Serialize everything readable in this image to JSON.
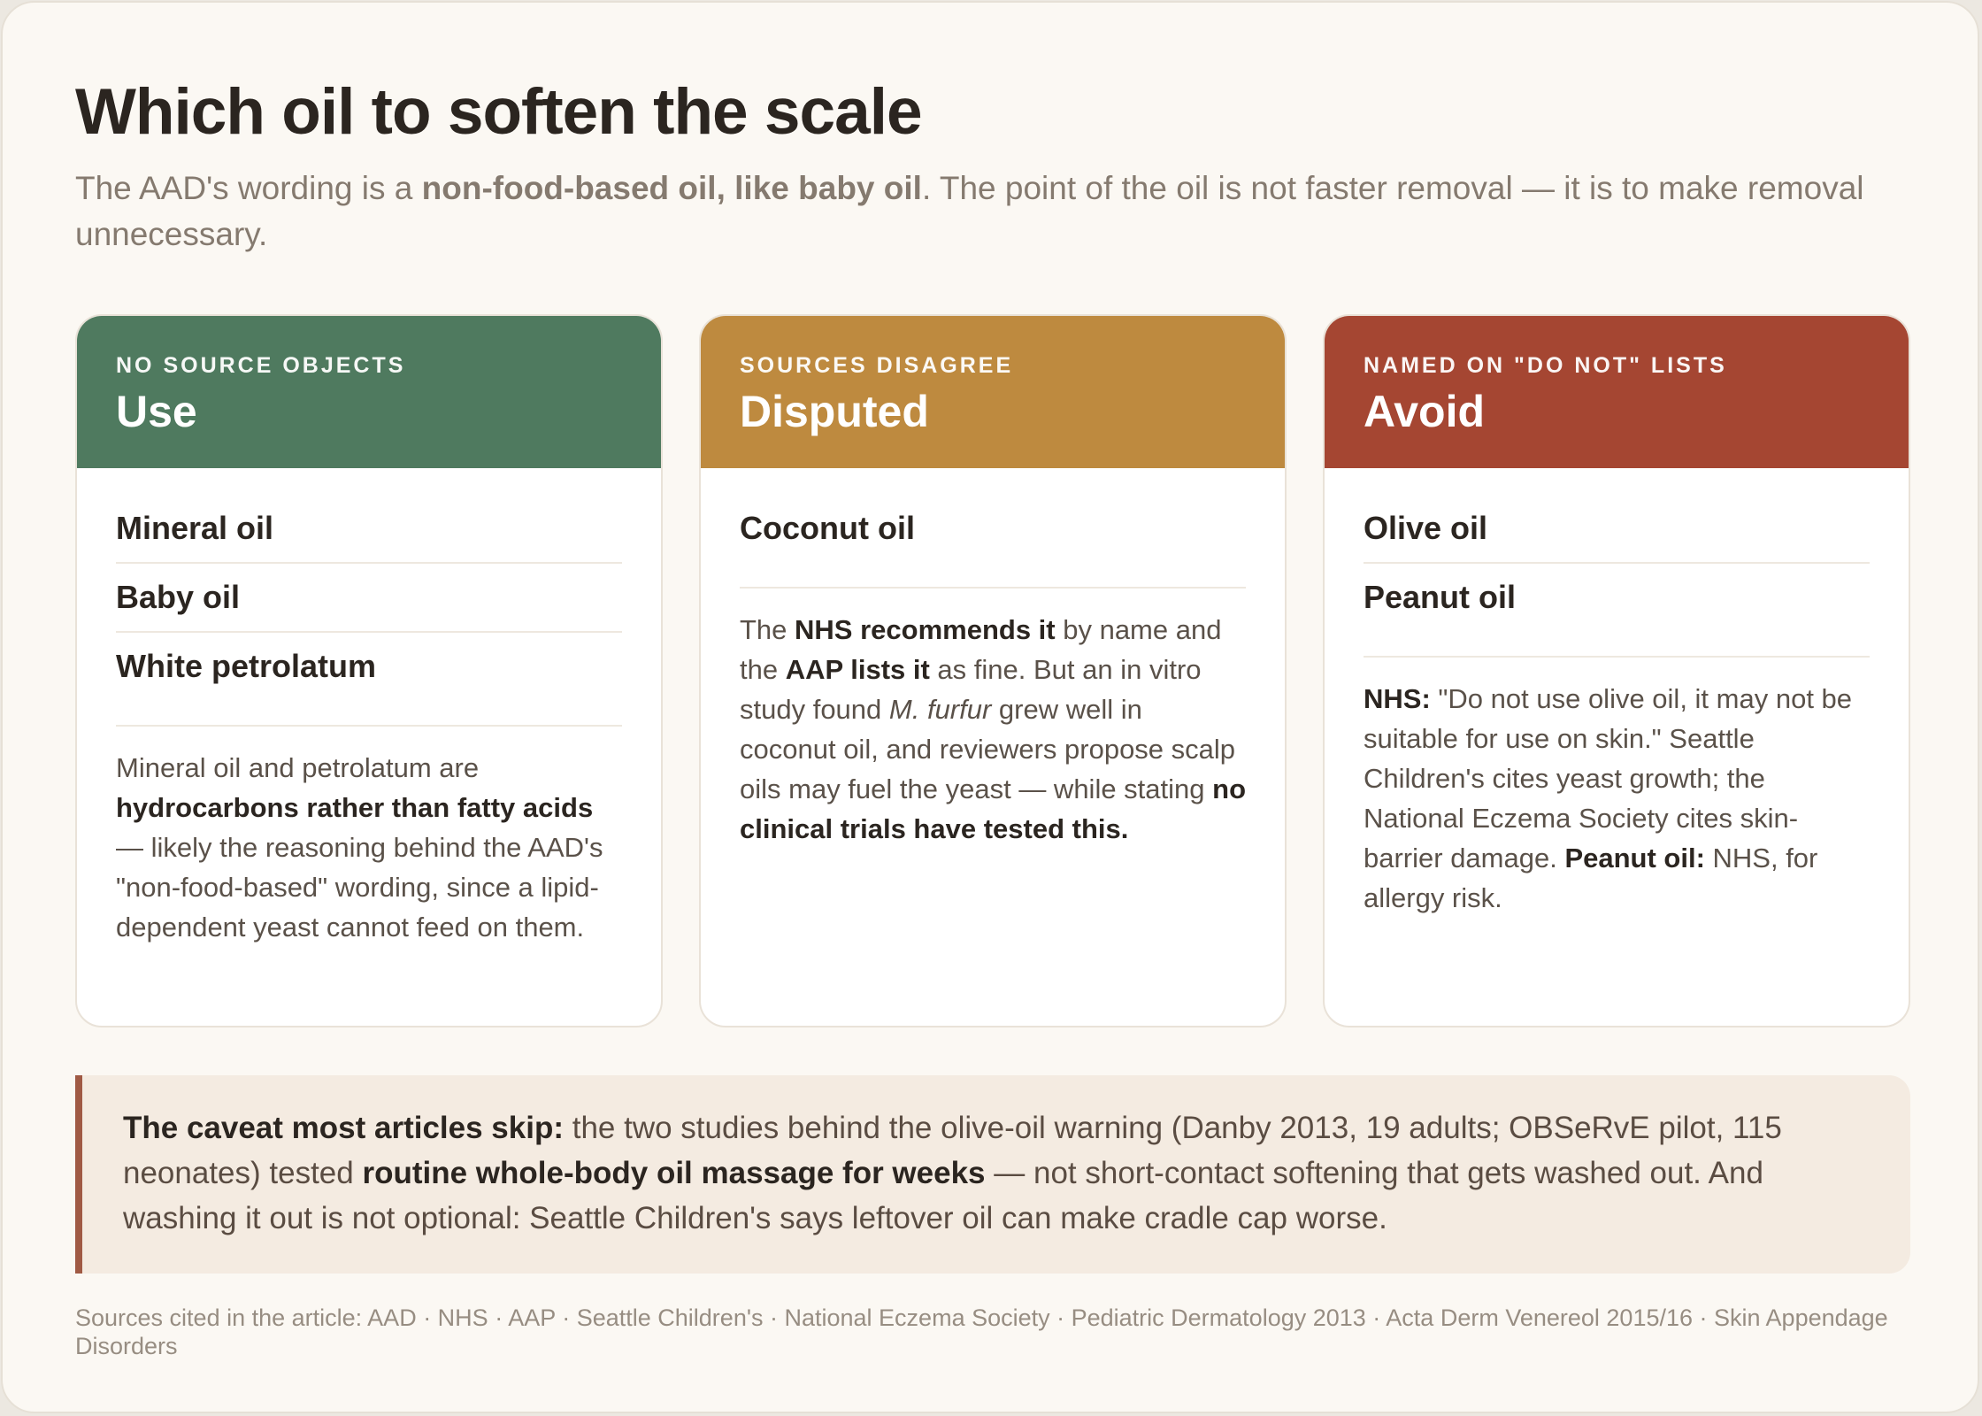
{
  "title": "Which oil to soften the scale",
  "subtitle": {
    "pre": "The AAD's wording is a ",
    "strong": "non-food-based oil, like baby oil",
    "post": ". The point of the oil is not faster removal — it is to make removal unnecessary."
  },
  "colors": {
    "use": "#4f7a5f",
    "disputed": "#be8a3f",
    "avoid": "#a54632",
    "caveat_accent": "#a05a44"
  },
  "columns": [
    {
      "kicker": "No source objects",
      "verdict": "Use",
      "items": [
        "Mineral oil",
        "Baby oil",
        "White petrolatum"
      ],
      "note": {
        "t1": "Mineral oil and petrolatum are ",
        "b1": "hydrocarbons rather than fatty acids",
        "t2": " — likely the reasoning behind the AAD's \"non-food-based\" wording, since a lipid-dependent yeast cannot feed on them."
      }
    },
    {
      "kicker": "Sources disagree",
      "verdict": "Disputed",
      "items": [
        "Coconut oil"
      ],
      "note": {
        "t1": "The ",
        "b1": "NHS recommends it",
        "t2": " by name and the ",
        "b2": "AAP lists it",
        "t3": " as fine. But an in vitro study found ",
        "i1": "M. furfur",
        "t4": " grew well in coconut oil, and reviewers propose scalp oils may fuel the yeast — while stating ",
        "b3": "no clinical trials have tested this."
      }
    },
    {
      "kicker": "Named on \"do not\" lists",
      "verdict": "Avoid",
      "items": [
        "Olive oil",
        "Peanut oil"
      ],
      "note": {
        "b1": "NHS:",
        "t1": " \"Do not use olive oil, it may not be suitable for use on skin.\" Seattle Children's cites yeast growth; the National Eczema Society cites skin-barrier damage. ",
        "b2": "Peanut oil:",
        "t2": " NHS, for allergy risk."
      }
    }
  ],
  "caveat": {
    "b1": "The caveat most articles skip:",
    "t1": " the two studies behind the olive-oil warning (Danby 2013, 19 adults; OBSeRvE pilot, 115 neonates) tested ",
    "b2": "routine whole-body oil massage for weeks",
    "t2": " — not short-contact softening that gets washed out. And washing it out is not optional: Seattle Children's says leftover oil can make cradle cap worse."
  },
  "footer": "Sources cited in the article: AAD · NHS · AAP · Seattle Children's · National Eczema Society · Pediatric Dermatology 2013 · Acta Derm Venereol 2015/16 · Skin Appendage Disorders"
}
